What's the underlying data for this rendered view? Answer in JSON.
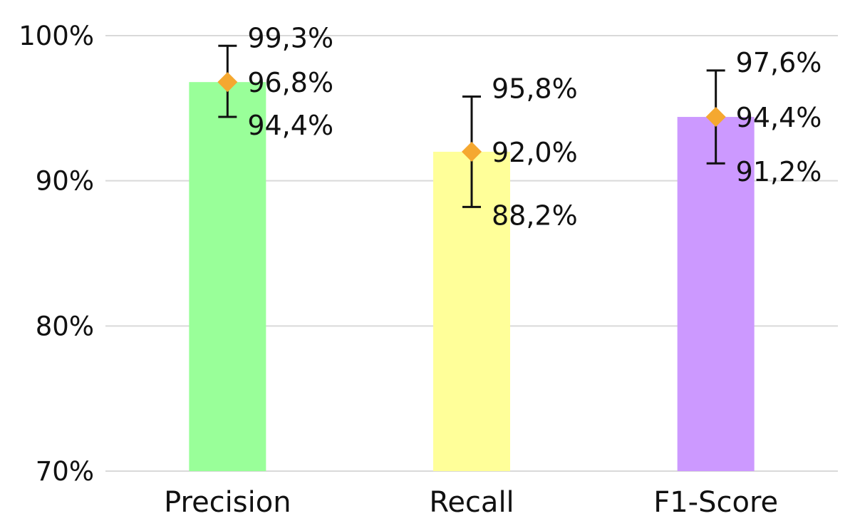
{
  "chart_data": {
    "type": "bar",
    "categories": [
      "Precision",
      "Recall",
      "F1-Score"
    ],
    "values": [
      96.8,
      92.0,
      94.4
    ],
    "upper": [
      99.3,
      95.8,
      97.6
    ],
    "lower": [
      94.4,
      88.2,
      91.2
    ],
    "value_labels": [
      "96,8%",
      "92,0%",
      "94,4%"
    ],
    "upper_labels": [
      "99,3%",
      "95,8%",
      "97,6%"
    ],
    "lower_labels": [
      "94,4%",
      "88,2%",
      "91,2%"
    ],
    "bar_colors": [
      "#99ff99",
      "#ffff99",
      "#cc99ff"
    ],
    "marker_color": "#f5a830",
    "ylim": [
      70,
      100
    ],
    "yticks": [
      70,
      80,
      90,
      100
    ],
    "ytick_labels": [
      "70%",
      "80%",
      "90%",
      "100%"
    ],
    "grid": true,
    "title": "",
    "xlabel": "",
    "ylabel": ""
  }
}
